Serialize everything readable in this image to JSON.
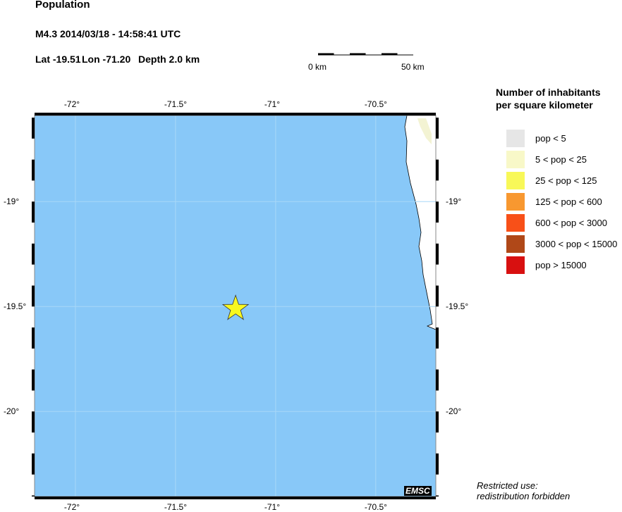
{
  "header": {
    "title": "Population",
    "event": "M4.3  2014/03/18 - 14:58:41 UTC",
    "lat": "Lat -19.51",
    "lon": "Lon -71.20",
    "depth": "Depth  2.0 km"
  },
  "scale_bar": {
    "left_label": "0 km",
    "right_label": "50 km"
  },
  "map": {
    "lon_range": [
      -72.204,
      -70.2
    ],
    "lat_range": [
      -20.405,
      -18.59
    ],
    "lon_ticks": [
      {
        "value": -72,
        "label": "-72°"
      },
      {
        "value": -71.5,
        "label": "-71.5°"
      },
      {
        "value": -71,
        "label": "-71°"
      },
      {
        "value": -70.5,
        "label": "-70.5°"
      }
    ],
    "lat_ticks": [
      {
        "value": -19,
        "label": "-19°"
      },
      {
        "value": -19.5,
        "label": "-19.5°"
      },
      {
        "value": -20,
        "label": "-20°"
      }
    ],
    "epicenter": {
      "lat": -19.51,
      "lon": -71.2,
      "color": "#f8f820"
    },
    "ocean_color": "#88c8f8",
    "logo": "EMSC"
  },
  "legend": {
    "title_line1": "Number of inhabitants",
    "title_line2": "per square kilometer",
    "items": [
      {
        "label": "pop < 5",
        "color": "#e6e6e6"
      },
      {
        "label": "5 < pop < 25",
        "color": "#f8f8c8"
      },
      {
        "label": "25 < pop < 125",
        "color": "#f8f858"
      },
      {
        "label": "125 < pop < 600",
        "color": "#f89830"
      },
      {
        "label": "600 < pop < 3000",
        "color": "#f85018"
      },
      {
        "label": "3000 < pop < 15000",
        "color": "#b04818"
      },
      {
        "label": "pop > 15000",
        "color": "#d81010"
      }
    ]
  },
  "footer": {
    "line1": "Restricted use:",
    "line2": "redistribution forbidden"
  }
}
